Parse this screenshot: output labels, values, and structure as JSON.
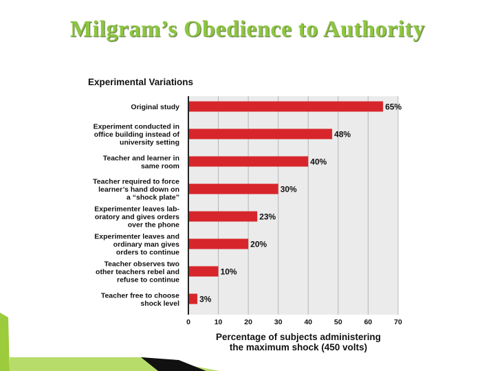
{
  "slide": {
    "title": "Milgram’s Obedience to Authority"
  },
  "colors": {
    "title": "#8dc63f",
    "bar": "#d7262b",
    "panel": "#ebebeb",
    "grid": "#b5b5b5",
    "text": "#111111"
  },
  "chart_data": {
    "type": "bar",
    "orientation": "horizontal",
    "title": "Experimental Variations",
    "categories": [
      [
        "Original study"
      ],
      [
        "Experiment conducted in",
        "office building instead of",
        "university setting"
      ],
      [
        "Teacher and learner in",
        "same room"
      ],
      [
        "Teacher required to force",
        "learner’s hand down on",
        "a “shock plate”"
      ],
      [
        "Experimenter leaves lab-",
        "oratory and gives orders",
        "over the phone"
      ],
      [
        "Experimenter leaves and",
        "ordinary man gives",
        "orders to continue"
      ],
      [
        "Teacher observes two",
        "other teachers rebel and",
        "refuse to continue"
      ],
      [
        "Teacher free to choose",
        "shock level"
      ]
    ],
    "values": [
      65,
      48,
      40,
      30,
      23,
      20,
      10,
      3
    ],
    "value_labels": [
      "65%",
      "48%",
      "40%",
      "30%",
      "23%",
      "20%",
      "10%",
      "3%"
    ],
    "xlim": [
      0,
      70
    ],
    "xticks": [
      "0",
      "10",
      "20",
      "30",
      "40",
      "50",
      "60",
      "70"
    ],
    "xlabel": [
      "Percentage of subjects administering",
      "the maximum shock (450 volts)"
    ],
    "grid": true
  }
}
